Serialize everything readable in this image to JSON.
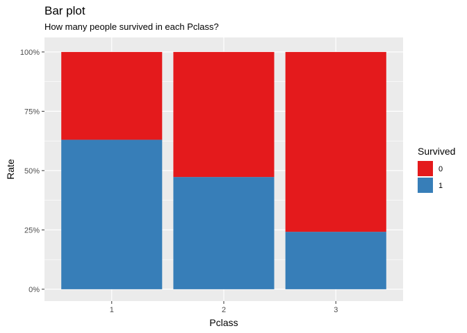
{
  "chart_data": {
    "type": "bar",
    "stacked": true,
    "title": "Bar plot",
    "subtitle": "How many people survived in each Pclass?",
    "xlabel": "Pclass",
    "ylabel": "Rate",
    "categories": [
      "1",
      "2",
      "3"
    ],
    "ylim": [
      0,
      1
    ],
    "yticks": [
      {
        "value": 0,
        "label": "0%"
      },
      {
        "value": 0.25,
        "label": "25%"
      },
      {
        "value": 0.5,
        "label": "50%"
      },
      {
        "value": 0.75,
        "label": "75%"
      },
      {
        "value": 1,
        "label": "100%"
      }
    ],
    "series": [
      {
        "name": "0",
        "color": "#E41A1C",
        "values": [
          0.37,
          0.527,
          0.758
        ]
      },
      {
        "name": "1",
        "color": "#377EB8",
        "values": [
          0.63,
          0.473,
          0.242
        ]
      }
    ],
    "legend": {
      "title": "Survived",
      "position": "right"
    },
    "grid": true,
    "panel_background": "#EBEBEB",
    "grid_color": "#FFFFFF"
  }
}
